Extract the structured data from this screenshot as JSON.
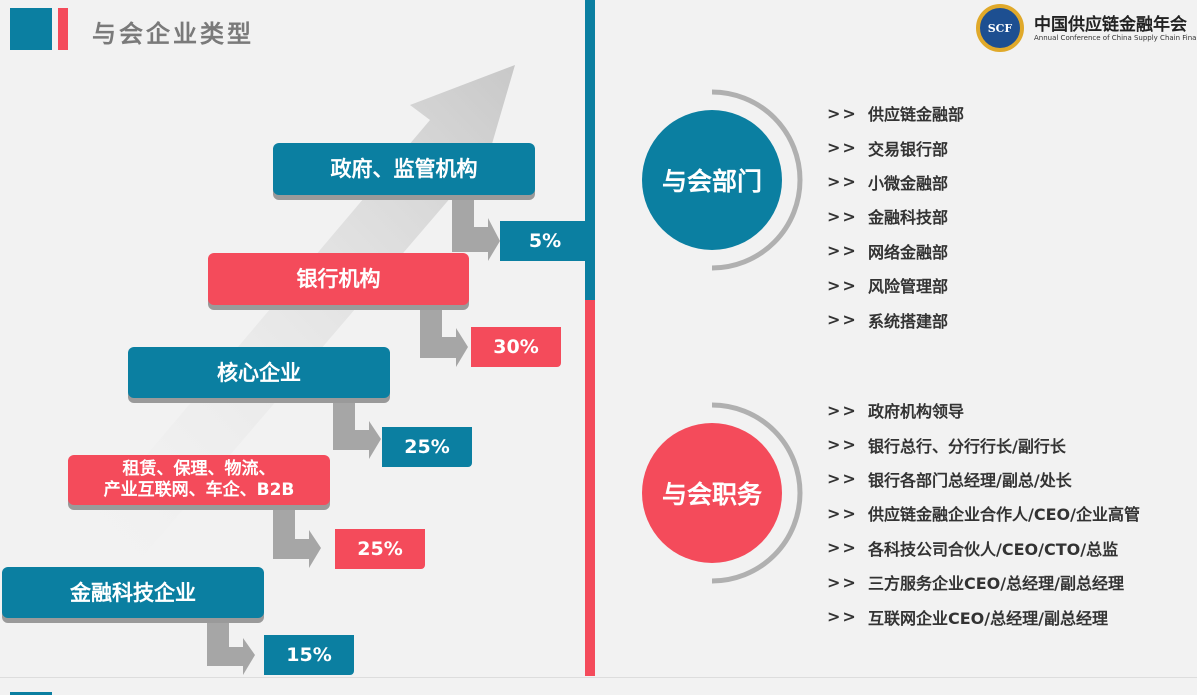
{
  "header": {
    "title": "与会企业类型"
  },
  "logo": {
    "badge": "SCF",
    "name": "中国供应链金融年会",
    "subtitle": "Annual Conference of China Supply Chain Finance"
  },
  "tiers": [
    {
      "label": "政府、监管机构",
      "percent": "5%",
      "color": "#0b7fa1"
    },
    {
      "label": "银行机构",
      "percent": "30%",
      "color": "#f44b5b"
    },
    {
      "label": "核心企业",
      "percent": "25%",
      "color": "#0b7fa1"
    },
    {
      "label_line1": "租赁、保理、物流、",
      "label_line2": "产业互联网、车企、B2B",
      "percent": "25%",
      "color": "#f44b5b"
    },
    {
      "label": "金融科技企业",
      "percent": "15%",
      "color": "#0b7fa1"
    }
  ],
  "departments": {
    "title": "与会部门",
    "marker": ">>",
    "items": [
      "供应链金融部",
      "交易银行部",
      "小微金融部",
      "金融科技部",
      "网络金融部",
      "风险管理部",
      "系统搭建部"
    ]
  },
  "positions": {
    "title": "与会职务",
    "marker": ">>",
    "items": [
      "政府机构领导",
      "银行总行、分行行长/副行长",
      "银行各部门总经理/副总/处长",
      "供应链金融企业合作人/CEO/企业高管",
      "各科技公司合伙人/CEO/CTO/总监",
      "三方服务企业CEO/总经理/副总经理",
      "互联网企业CEO/总经理/副总经理"
    ]
  }
}
